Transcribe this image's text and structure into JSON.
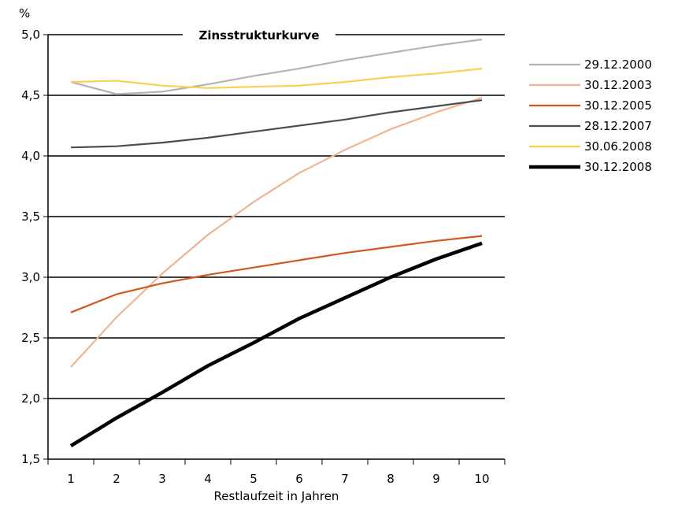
{
  "chart_data": {
    "type": "line",
    "title": "Zinsstrukturkurve",
    "ylabel": "%",
    "xlabel": "Restlaufzeit in Jahren",
    "x": [
      1,
      2,
      3,
      4,
      5,
      6,
      7,
      8,
      9,
      10
    ],
    "x_tick_labels": [
      "1",
      "2",
      "3",
      "4",
      "5",
      "6",
      "7",
      "8",
      "9",
      "10"
    ],
    "ylim": [
      1.5,
      5.0
    ],
    "y_ticks": [
      1.5,
      2.0,
      2.5,
      3.0,
      3.5,
      4.0,
      4.5,
      5.0
    ],
    "y_tick_labels": [
      "1,5",
      "2,0",
      "2,5",
      "3,0",
      "3,5",
      "4,0",
      "4,5",
      "5,0"
    ],
    "grid": "horizontal",
    "legend_position": "right",
    "series": [
      {
        "name": "29.12.2000",
        "color": "#b3b3b3",
        "values": [
          4.61,
          4.51,
          4.53,
          4.59,
          4.66,
          4.72,
          4.79,
          4.85,
          4.91,
          4.96
        ]
      },
      {
        "name": "30.12.2003",
        "color": "#efb592",
        "values": [
          2.26,
          2.67,
          3.03,
          3.35,
          3.62,
          3.86,
          4.05,
          4.22,
          4.36,
          4.48
        ]
      },
      {
        "name": "30.12.2005",
        "color": "#d4561f",
        "values": [
          2.71,
          2.86,
          2.95,
          3.02,
          3.08,
          3.14,
          3.2,
          3.25,
          3.3,
          3.34
        ]
      },
      {
        "name": "28.12.2007",
        "color": "#4d4d4d",
        "values": [
          4.07,
          4.08,
          4.11,
          4.15,
          4.2,
          4.25,
          4.3,
          4.36,
          4.41,
          4.46
        ]
      },
      {
        "name": "30.06.2008",
        "color": "#f7d154",
        "values": [
          4.61,
          4.62,
          4.58,
          4.56,
          4.57,
          4.58,
          4.61,
          4.65,
          4.68,
          4.72
        ]
      },
      {
        "name": "30.12.2008",
        "color": "#000000",
        "values": [
          1.61,
          1.84,
          2.05,
          2.27,
          2.46,
          2.66,
          2.83,
          3.0,
          3.15,
          3.28
        ]
      }
    ]
  }
}
